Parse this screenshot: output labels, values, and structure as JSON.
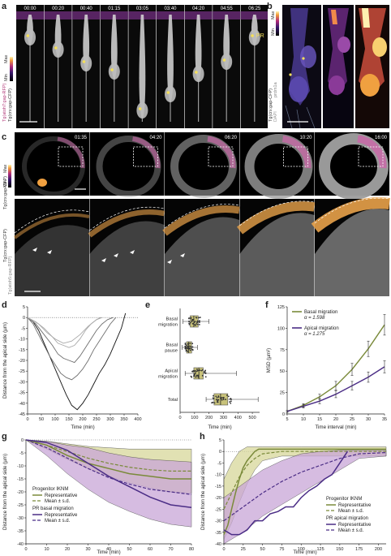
{
  "panel_labels": {
    "a": "a",
    "b": "b",
    "c": "c",
    "d": "d",
    "e": "e",
    "f": "f",
    "g": "g",
    "h": "h"
  },
  "panel_a": {
    "timestamps": [
      "00:00",
      "00:20",
      "00:40",
      "01:15",
      "03:05",
      "03:40",
      "04:20",
      "04:55",
      "06:25"
    ],
    "pr_label": "PR",
    "side_label_1": "Tg(atoh7:gap-RFP)",
    "side_label_2": "Tg(crx:gap-CFP)",
    "scale_min": "Min",
    "scale_max": "Max"
  },
  "panel_b": {
    "side_label_1": "Tg(crx:gap-CFP)",
    "side_label_2": "DAPI",
    "side_label_3": "prdm1a",
    "scale_min": "Min",
    "scale_max": "Max"
  },
  "panel_c": {
    "timestamps": [
      "01:35",
      "04:20",
      "06:20",
      "10:20",
      "16:00"
    ],
    "side_label_top_1": "Tg(crx:gap-CFP)",
    "side_label_top_min": "Min",
    "side_label_top_max": "Max",
    "side_label_bottom_1": "Tg(crx:gap-CFP)",
    "side_label_bottom_2": "Tg(atoh5:gap-RFP)"
  },
  "colors": {
    "green": "#7a8a3a",
    "purple": "#4b2d86",
    "green_fill": "#d8d89a",
    "purple_fill": "#c9a6d8",
    "box_fill": "#c8c27a"
  },
  "chart_data": [
    {
      "id": "d",
      "type": "line",
      "xlabel": "Time (min)",
      "ylabel": "Distance from the apical side (µm)",
      "xlim": [
        0,
        400
      ],
      "ylim": [
        -45,
        5
      ],
      "xticks": [
        "0",
        "50",
        "100",
        "150",
        "200",
        "250",
        "300",
        "350",
        "400"
      ],
      "yticks": [
        "5",
        "0",
        "-5",
        "-10",
        "-15",
        "-20",
        "-25",
        "-30",
        "-35",
        "-40",
        "-45"
      ],
      "series": [
        {
          "values": [
            [
              0,
              0
            ],
            [
              20,
              -2
            ],
            [
              40,
              -6
            ],
            [
              60,
              -12
            ],
            [
              80,
              -18
            ],
            [
              100,
              -24
            ],
            [
              120,
              -30
            ],
            [
              140,
              -36
            ],
            [
              160,
              -41
            ],
            [
              180,
              -43
            ],
            [
              200,
              -40
            ],
            [
              220,
              -36
            ],
            [
              240,
              -31
            ],
            [
              260,
              -26
            ],
            [
              280,
              -22
            ],
            [
              300,
              -17
            ],
            [
              320,
              -11
            ],
            [
              340,
              -5
            ],
            [
              355,
              2
            ]
          ],
          "style": "dark"
        },
        {
          "values": [
            [
              0,
              0
            ],
            [
              20,
              -3
            ],
            [
              40,
              -8
            ],
            [
              60,
              -13
            ],
            [
              80,
              -18
            ],
            [
              100,
              -22
            ],
            [
              120,
              -26
            ],
            [
              140,
              -28
            ],
            [
              160,
              -29
            ],
            [
              180,
              -27
            ],
            [
              200,
              -24
            ],
            [
              220,
              -20
            ],
            [
              240,
              -15
            ],
            [
              260,
              -11
            ],
            [
              280,
              -7
            ],
            [
              300,
              -3
            ],
            [
              320,
              0
            ]
          ],
          "style": "mid"
        },
        {
          "values": [
            [
              0,
              0
            ],
            [
              30,
              -3
            ],
            [
              60,
              -8
            ],
            [
              90,
              -13
            ],
            [
              110,
              -17
            ],
            [
              130,
              -19
            ],
            [
              150,
              -20
            ],
            [
              170,
              -21
            ],
            [
              190,
              -18
            ],
            [
              210,
              -14
            ],
            [
              230,
              -10
            ],
            [
              250,
              -6
            ],
            [
              270,
              -3
            ],
            [
              290,
              -1
            ],
            [
              310,
              0
            ]
          ],
          "style": "mid"
        },
        {
          "values": [
            [
              0,
              0
            ],
            [
              30,
              -2
            ],
            [
              60,
              -5
            ],
            [
              90,
              -9
            ],
            [
              110,
              -12
            ],
            [
              130,
              -13
            ],
            [
              150,
              -14
            ],
            [
              170,
              -13
            ],
            [
              190,
              -10
            ],
            [
              210,
              -6
            ],
            [
              230,
              -3
            ],
            [
              250,
              -1
            ],
            [
              265,
              0
            ]
          ],
          "style": "light"
        },
        {
          "values": [
            [
              0,
              0
            ],
            [
              40,
              -3
            ],
            [
              70,
              -7
            ],
            [
              100,
              -10
            ],
            [
              130,
              -12
            ],
            [
              160,
              -11
            ],
            [
              190,
              -8
            ],
            [
              220,
              -4
            ],
            [
              250,
              -1
            ],
            [
              270,
              0
            ]
          ],
          "style": "light"
        }
      ]
    },
    {
      "id": "e",
      "type": "box",
      "xlabel": "Time (min)",
      "categories": [
        "Basal migration",
        "Basal pause",
        "Apical migration",
        "Total"
      ],
      "xlim": [
        0,
        550
      ],
      "xticks": [
        "0",
        "100",
        "200",
        "300",
        "400",
        "500"
      ],
      "boxes": [
        {
          "min": 20,
          "q1": 70,
          "median": 95,
          "q3": 125,
          "max": 200
        },
        {
          "min": 15,
          "q1": 45,
          "median": 60,
          "q3": 80,
          "max": 120
        },
        {
          "min": 35,
          "q1": 95,
          "median": 130,
          "q3": 160,
          "max": 390
        },
        {
          "min": 180,
          "q1": 235,
          "median": 280,
          "q3": 330,
          "max": 540
        }
      ]
    },
    {
      "id": "f",
      "type": "line",
      "xlabel": "Time interval (min)",
      "ylabel": "MSD (µm²)",
      "xlim": [
        5,
        35
      ],
      "ylim": [
        0,
        125
      ],
      "xticks": [
        "5",
        "10",
        "15",
        "20",
        "25",
        "30",
        "35"
      ],
      "yticks": [
        "0",
        "25",
        "50",
        "75",
        "100",
        "125"
      ],
      "series": [
        {
          "name": "Basal migration",
          "annotation": "α = 1.598",
          "x": [
            5,
            10,
            15,
            20,
            25,
            30,
            35
          ],
          "values": [
            3,
            10,
            20,
            33,
            52,
            76,
            104
          ],
          "err": [
            1,
            2,
            3,
            5,
            7,
            9,
            12
          ]
        },
        {
          "name": "Apical migration",
          "annotation": "α = 1.275",
          "x": [
            5,
            10,
            15,
            20,
            25,
            30,
            35
          ],
          "values": [
            3,
            9,
            15,
            23,
            33,
            43,
            55
          ],
          "err": [
            1,
            2,
            3,
            4,
            5,
            6,
            7
          ]
        }
      ]
    },
    {
      "id": "g",
      "type": "area",
      "xlabel": "Time (min)",
      "ylabel": "Distance from the apical side (µm)",
      "xlim": [
        0,
        80
      ],
      "ylim": [
        -40,
        0
      ],
      "xticks": [
        "0",
        "10",
        "20",
        "30",
        "40",
        "50",
        "60",
        "70",
        "80"
      ],
      "yticks": [
        "0",
        "-5",
        "-10",
        "-15",
        "-20",
        "-25",
        "-30",
        "-35",
        "-40"
      ],
      "legend": {
        "group1": "Progenitor IKNM",
        "group1_rep": "Representative",
        "group1_mean": "Mean ± s.d.",
        "group2": "PR basal migration",
        "group2_rep": "Representative",
        "group2_mean": "Mean ± s.d."
      },
      "series": [
        {
          "name": "Progenitor IKNM mean",
          "x": [
            0,
            10,
            20,
            30,
            40,
            50,
            60,
            70,
            80
          ],
          "values": [
            0,
            -2,
            -4.5,
            -7,
            -9,
            -10.5,
            -11.5,
            -12,
            -12
          ]
        },
        {
          "name": "Progenitor IKNM sd",
          "x": [
            0,
            10,
            20,
            30,
            40,
            50,
            60,
            70,
            80
          ],
          "upper": [
            0,
            -0.5,
            -1.5,
            -2.5,
            -3,
            -3.5,
            -3.5,
            -3.5,
            -3.5
          ],
          "lower": [
            0,
            -3.5,
            -7.5,
            -11,
            -14,
            -16.5,
            -18.5,
            -20,
            -20.5
          ]
        },
        {
          "name": "Progenitor IKNM representative",
          "x": [
            0,
            10,
            20,
            30,
            40,
            50,
            60,
            70,
            80
          ],
          "values": [
            0,
            -2,
            -6,
            -9,
            -11,
            -13,
            -14,
            -15,
            -15
          ]
        },
        {
          "name": "PR basal migration mean",
          "x": [
            0,
            10,
            20,
            30,
            40,
            50,
            60,
            70,
            80
          ],
          "values": [
            0,
            -3,
            -7,
            -11,
            -14.5,
            -17,
            -19,
            -20,
            -21
          ]
        },
        {
          "name": "PR basal migration sd",
          "x": [
            0,
            10,
            20,
            30,
            40,
            50,
            60,
            70,
            80
          ],
          "upper": [
            0,
            -0.5,
            -2,
            -3,
            -5,
            -6.5,
            -7.5,
            -8,
            -8.5
          ],
          "lower": [
            0,
            -6,
            -13,
            -19,
            -24,
            -27.5,
            -30.5,
            -32.5,
            -33.5
          ]
        },
        {
          "name": "PR basal migration representative",
          "x": [
            0,
            10,
            20,
            30,
            40,
            50,
            60,
            70,
            80
          ],
          "values": [
            0,
            -1,
            -4,
            -9,
            -14,
            -18,
            -22,
            -25,
            -26
          ]
        }
      ]
    },
    {
      "id": "h",
      "type": "area",
      "xlabel": "Time (min)",
      "ylabel": "Distance from the apical side (µm)",
      "xlim": [
        0,
        210
      ],
      "ylim": [
        -40,
        5
      ],
      "xticks": [
        "0",
        "25",
        "50",
        "75",
        "100",
        "125",
        "150",
        "175",
        "200"
      ],
      "yticks": [
        "5",
        "0",
        "-5",
        "-10",
        "-15",
        "-20",
        "-25",
        "-30",
        "-35",
        "-40"
      ],
      "legend": {
        "group1": "Progenitor IKNM",
        "group1_rep": "Representative",
        "group1_mean": "Mean ± s.d.",
        "group2": "PR apical migration",
        "group2_rep": "Representative",
        "group2_mean": "Mean ± s.d."
      },
      "series": [
        {
          "name": "Progenitor IKNM mean",
          "x": [
            0,
            10,
            20,
            30,
            40,
            50,
            75,
            100,
            150,
            210
          ],
          "values": [
            -25,
            -18,
            -11,
            -6,
            -3,
            -1,
            0,
            0,
            0,
            0
          ]
        },
        {
          "name": "Progenitor IKNM sd",
          "x": [
            0,
            10,
            20,
            30,
            40,
            50,
            75,
            100,
            150,
            210
          ],
          "upper": [
            -12,
            -5,
            0,
            2,
            2,
            2,
            2,
            2,
            2,
            2
          ],
          "lower": [
            -38,
            -31,
            -22,
            -14,
            -8,
            -4,
            -2,
            -2,
            -2,
            -2
          ]
        },
        {
          "name": "Progenitor IKNM representative",
          "x": [
            0,
            5,
            10,
            15,
            20,
            25,
            30,
            35,
            40,
            45,
            50,
            210
          ],
          "values": [
            -36,
            -32,
            -25,
            -18,
            -12,
            -7,
            -4,
            -2,
            0,
            1,
            1,
            1
          ]
        },
        {
          "name": "PR apical migration mean",
          "x": [
            0,
            25,
            50,
            75,
            100,
            125,
            150,
            175,
            210
          ],
          "values": [
            -30,
            -24,
            -18,
            -13,
            -9,
            -6,
            -3,
            -1,
            -0.5
          ]
        },
        {
          "name": "PR apical migration sd",
          "x": [
            0,
            25,
            50,
            75,
            100,
            125,
            150,
            175,
            210
          ],
          "upper": [
            -20,
            -14,
            -8,
            -4,
            -1,
            0,
            0.5,
            0.5,
            0.5
          ],
          "lower": [
            -40,
            -35,
            -28,
            -23,
            -18,
            -13,
            -8,
            -3,
            -2
          ]
        },
        {
          "name": "PR apical migration representative",
          "x": [
            0,
            10,
            20,
            30,
            40,
            50,
            60,
            70,
            80,
            90,
            100,
            110,
            120,
            130,
            140,
            150,
            160
          ],
          "values": [
            -34,
            -36,
            -36,
            -34,
            -30,
            -30,
            -27,
            -26,
            -24,
            -24,
            -20,
            -17,
            -15,
            -12,
            -10,
            -5,
            0
          ]
        }
      ]
    }
  ]
}
